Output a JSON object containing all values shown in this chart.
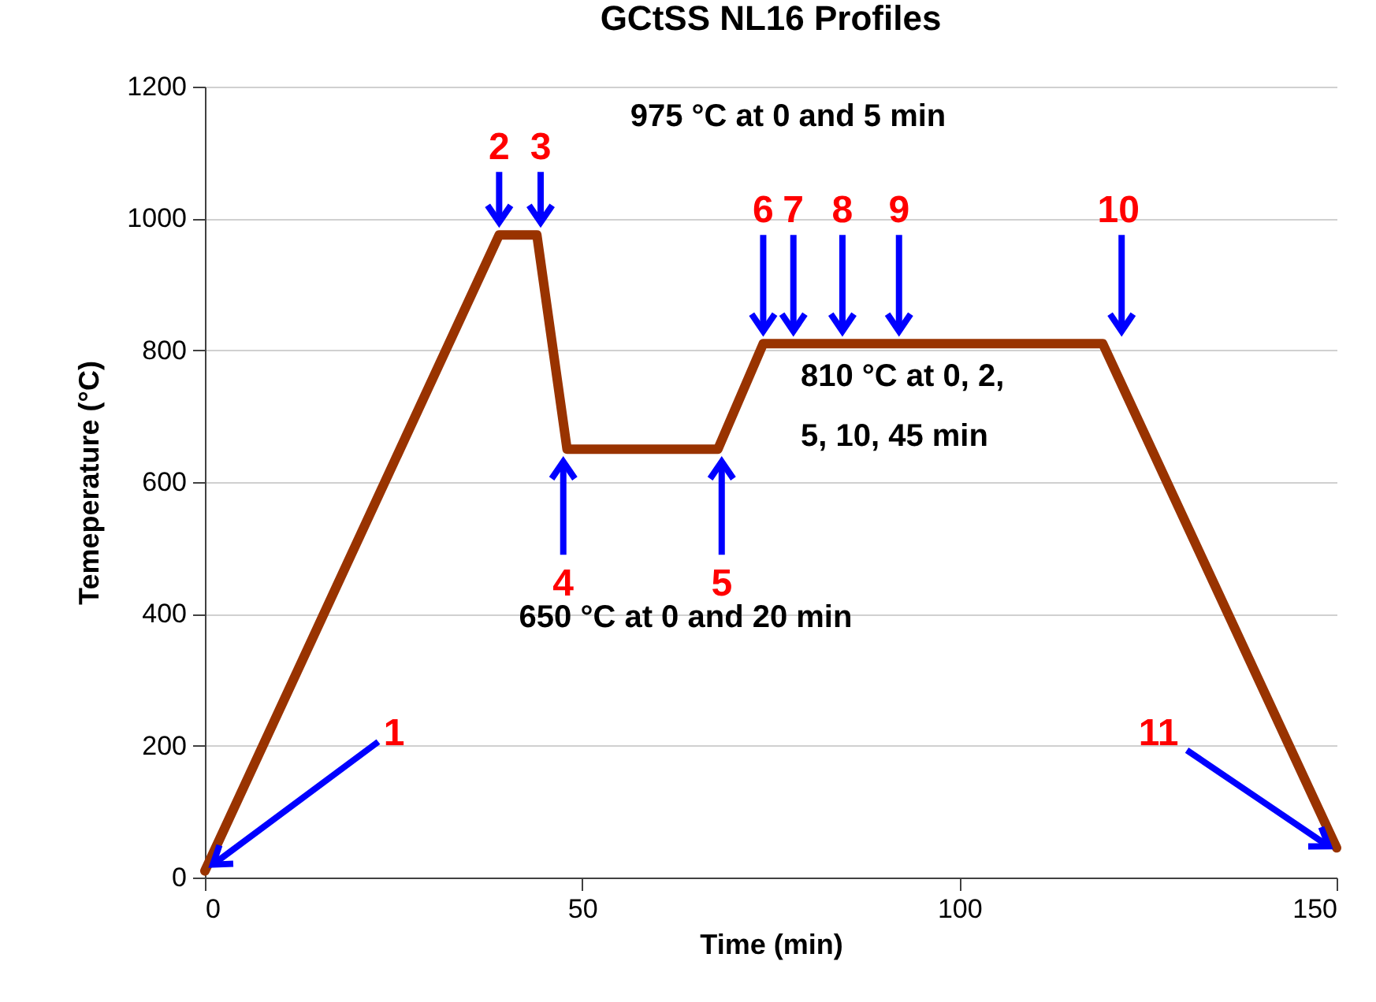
{
  "chart_data": {
    "type": "line",
    "title": "GCtSS NL16 Profiles",
    "xlabel": "Time (min)",
    "ylabel": "Temeperature (°C)",
    "x": [
      0,
      39,
      44,
      48,
      68,
      74,
      119,
      150
    ],
    "series": [
      {
        "color": "#993300",
        "values": [
          10,
          975,
          975,
          650,
          650,
          810,
          810,
          45
        ]
      }
    ],
    "xlim": [
      0,
      150
    ],
    "xticks": [
      0,
      50,
      100,
      150
    ],
    "ylim": [
      0,
      1200
    ],
    "yticks": [
      0,
      200,
      400,
      600,
      800,
      1000,
      1200
    ],
    "grid": "y",
    "marker": "none",
    "line_style": "solid",
    "annotations": [
      {
        "text": "1",
        "x": 0,
        "y": 10
      },
      {
        "text": "2",
        "x": 39,
        "y": 975
      },
      {
        "text": "3",
        "x": 44.5,
        "y": 975
      },
      {
        "text": "4",
        "x": 47.5,
        "y": 650
      },
      {
        "text": "5",
        "x": 68.5,
        "y": 650
      },
      {
        "text": "6",
        "x": 74,
        "y": 810
      },
      {
        "text": "7",
        "x": 78,
        "y": 810
      },
      {
        "text": "8",
        "x": 84.5,
        "y": 810
      },
      {
        "text": "9",
        "x": 92,
        "y": 810
      },
      {
        "text": "10",
        "x": 119,
        "y": 810
      },
      {
        "text": "11",
        "x": 150,
        "y": 45
      },
      "975 °C at 0 and 5 min",
      "810 °C at 0, 2,\n5, 10, 45 min",
      "650 °C at 0 and 20 min"
    ]
  }
}
